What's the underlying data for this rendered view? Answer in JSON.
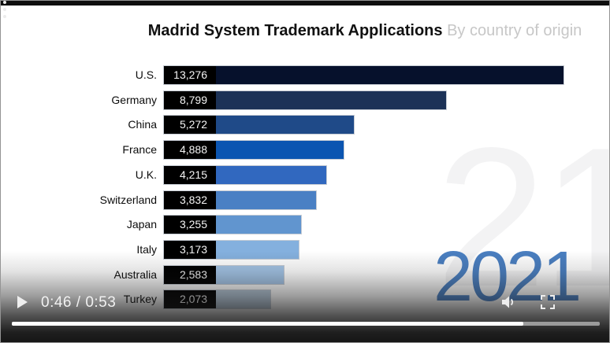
{
  "video": {
    "watermark_digits": "21",
    "year_label": "2021",
    "controls": {
      "time_display": "0:46 / 0:53",
      "current_seconds": 46,
      "duration_seconds": 53
    }
  },
  "title": {
    "main": "Madrid System Trademark Applications",
    "sub": " By country of origin"
  },
  "colors": {
    "year_blue": "#4a7fc1",
    "watermark_gray": "#f3f3f4",
    "label_box_black": "#000000",
    "progress_played": "#ffffff",
    "progress_remaining": "#9b9b9b"
  },
  "chart_data": {
    "type": "bar",
    "orientation": "horizontal",
    "title": "Madrid System Trademark Applications",
    "subtitle": "By country of origin",
    "year": "2021",
    "categories": [
      "U.S.",
      "Germany",
      "China",
      "France",
      "U.K.",
      "Switzerland",
      "Japan",
      "Italy",
      "Australia",
      "Turkey"
    ],
    "values": [
      13276,
      8799,
      5272,
      4888,
      4215,
      3832,
      3255,
      3173,
      2583,
      2073
    ],
    "value_labels": [
      "13,276",
      "8,799",
      "5,272",
      "4,888",
      "4,215",
      "3,832",
      "3,255",
      "3,173",
      "2,583",
      "2,073"
    ],
    "bar_colors": [
      "#06112c",
      "#1c3257",
      "#1f4a88",
      "#0b55b1",
      "#3168bf",
      "#4a80c4",
      "#6195cf",
      "#84b0de",
      "#a3c4e6",
      "#b7c9da"
    ],
    "xlim": [
      0,
      13276
    ],
    "legend": null,
    "grid": false
  }
}
